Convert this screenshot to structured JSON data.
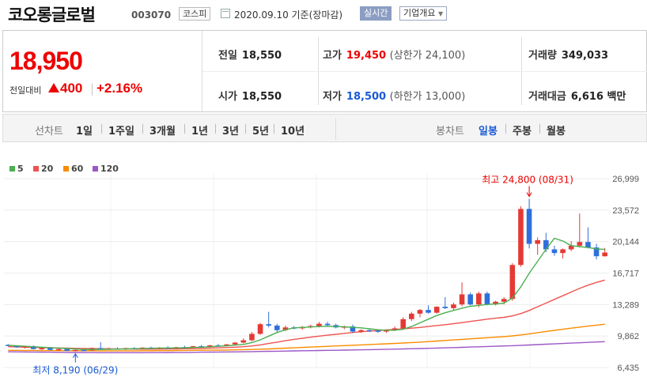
{
  "header": {
    "name": "코오롱글로벌",
    "code": "003070",
    "market": "코스피",
    "date": "2020.09.10 기준(장마감)",
    "realtime": "실시간",
    "overview": "기업개요",
    "overview_caret": "▼"
  },
  "quote": {
    "price": "18,950",
    "prev_label": "전일대비",
    "change": "400",
    "pct": "+2.16%",
    "sep": "|",
    "prev_close_label": "전일",
    "prev_close": "18,550",
    "open_label": "시가",
    "open": "18,550",
    "high_label": "고가",
    "high": "19,450",
    "upper_limit": "(상한가 24,100)",
    "low_label": "저가",
    "low": "18,500",
    "lower_limit": "(하한가 13,000)",
    "volume_label": "거래량",
    "volume": "349,033",
    "amount_label": "거래대금",
    "amount": "6,616 백만"
  },
  "period_tabs": {
    "label": "선차트",
    "items": [
      "1일",
      "1주일",
      "3개월",
      "1년",
      "3년",
      "5년",
      "10년"
    ]
  },
  "candle_tabs": {
    "label": "봉차트",
    "items": [
      "일봉",
      "주봉",
      "월봉"
    ],
    "active": "일봉"
  },
  "colors": {
    "up": "#e53935",
    "down": "#2f6fdc",
    "ma5": "#4caf50",
    "ma20": "#ef5350",
    "ma60": "#fb8c00",
    "ma120": "#9c57c8"
  },
  "chart_data": {
    "type": "candlestick",
    "legend": [
      {
        "name": "5",
        "color": "#4caf50"
      },
      {
        "name": "20",
        "color": "#ef5350"
      },
      {
        "name": "60",
        "color": "#fb8c00"
      },
      {
        "name": "120",
        "color": "#9c57c8"
      }
    ],
    "y_ticks": [
      "26,999",
      "23,572",
      "20,144",
      "16,717",
      "13,289",
      "9,862",
      "6,435"
    ],
    "y_tick_values": [
      26999,
      23572,
      20144,
      16717,
      13289,
      9862,
      6435
    ],
    "ylim": [
      6435,
      26999
    ],
    "max_label": "최고 24,800 (08/31)",
    "min_label": "최저 8,190 (06/29)",
    "candles": [
      [
        8900,
        9000,
        8750,
        8800
      ],
      [
        8800,
        8850,
        8600,
        8650
      ],
      [
        8650,
        8800,
        8500,
        8750
      ],
      [
        8750,
        8850,
        8400,
        8450
      ],
      [
        8450,
        8600,
        8350,
        8550
      ],
      [
        8550,
        8650,
        8300,
        8350
      ],
      [
        8350,
        8500,
        8250,
        8450
      ],
      [
        8450,
        8500,
        8200,
        8250
      ],
      [
        8250,
        8400,
        8190,
        8350
      ],
      [
        8350,
        8450,
        8250,
        8300
      ],
      [
        8300,
        8600,
        8250,
        8550
      ],
      [
        8550,
        9200,
        8400,
        8450
      ],
      [
        8450,
        8600,
        8350,
        8500
      ],
      [
        8500,
        8650,
        8400,
        8450
      ],
      [
        8450,
        8600,
        8350,
        8550
      ],
      [
        8550,
        8650,
        8450,
        8500
      ],
      [
        8500,
        8650,
        8400,
        8600
      ],
      [
        8600,
        8700,
        8450,
        8500
      ],
      [
        8500,
        8650,
        8400,
        8600
      ],
      [
        8600,
        8750,
        8500,
        8550
      ],
      [
        8550,
        8700,
        8450,
        8650
      ],
      [
        8650,
        8800,
        8550,
        8600
      ],
      [
        8600,
        8800,
        8550,
        8750
      ],
      [
        8750,
        8900,
        8600,
        8700
      ],
      [
        8700,
        8900,
        8600,
        8850
      ],
      [
        8850,
        9000,
        8700,
        8800
      ],
      [
        8800,
        9000,
        8750,
        8950
      ],
      [
        8950,
        9200,
        8850,
        9150
      ],
      [
        9150,
        9600,
        9050,
        9400
      ],
      [
        9400,
        10300,
        9300,
        10100
      ],
      [
        10100,
        11300,
        10000,
        11150
      ],
      [
        11150,
        12500,
        10800,
        11000
      ],
      [
        11000,
        11200,
        10300,
        10500
      ],
      [
        10500,
        11000,
        10400,
        10800
      ],
      [
        10800,
        10950,
        10600,
        10700
      ],
      [
        10700,
        10950,
        10550,
        10850
      ],
      [
        10850,
        11100,
        10700,
        10950
      ],
      [
        10950,
        11400,
        10800,
        11200
      ],
      [
        11200,
        11400,
        10950,
        11050
      ],
      [
        11050,
        11200,
        10700,
        10800
      ],
      [
        10800,
        11000,
        10600,
        10900
      ],
      [
        10900,
        11100,
        10200,
        10350
      ],
      [
        10350,
        10600,
        10200,
        10500
      ],
      [
        10500,
        10600,
        10300,
        10450
      ],
      [
        10450,
        10600,
        10200,
        10350
      ],
      [
        10350,
        10600,
        10200,
        10500
      ],
      [
        10500,
        10900,
        10400,
        10700
      ],
      [
        10700,
        11900,
        10600,
        11700
      ],
      [
        11700,
        12500,
        11500,
        12300
      ],
      [
        12300,
        12800,
        11900,
        12700
      ],
      [
        12700,
        13200,
        12300,
        12400
      ],
      [
        12400,
        13100,
        12300,
        13050
      ],
      [
        13050,
        14100,
        12800,
        12900
      ],
      [
        12900,
        13500,
        12700,
        13300
      ],
      [
        13300,
        15700,
        13100,
        14400
      ],
      [
        14400,
        14600,
        13200,
        13300
      ],
      [
        13300,
        14700,
        13000,
        14500
      ],
      [
        14500,
        14700,
        13200,
        13300
      ],
      [
        13300,
        13700,
        13200,
        13600
      ],
      [
        13600,
        14100,
        13300,
        13900
      ],
      [
        13900,
        17800,
        13700,
        17600
      ],
      [
        17600,
        24000,
        17400,
        23700
      ],
      [
        23700,
        24800,
        19400,
        19900
      ],
      [
        19900,
        20600,
        18700,
        20300
      ],
      [
        20300,
        21100,
        19000,
        19300
      ],
      [
        19300,
        19700,
        18600,
        18900
      ],
      [
        18900,
        19400,
        18300,
        19300
      ],
      [
        19300,
        20200,
        19100,
        19700
      ],
      [
        19700,
        23200,
        19500,
        20100
      ],
      [
        20100,
        21700,
        19400,
        19500
      ],
      [
        19500,
        19900,
        18200,
        18550
      ],
      [
        18550,
        19450,
        18500,
        18950
      ]
    ],
    "ma5": [
      8850,
      8800,
      8750,
      8700,
      8650,
      8600,
      8550,
      8500,
      8450,
      8400,
      8400,
      8400,
      8420,
      8440,
      8460,
      8490,
      8510,
      8530,
      8550,
      8560,
      8570,
      8590,
      8620,
      8650,
      8700,
      8750,
      8800,
      8870,
      8950,
      9150,
      9450,
      9850,
      10250,
      10550,
      10750,
      10800,
      10850,
      10900,
      10930,
      10900,
      10870,
      10800,
      10750,
      10650,
      10550,
      10500,
      10500,
      10600,
      10900,
      11300,
      11700,
      12100,
      12400,
      12650,
      12900,
      13100,
      13200,
      13300,
      13350,
      13450,
      14000,
      15200,
      16700,
      18000,
      19300,
      20500,
      20200,
      19700,
      19600,
      19500,
      19350,
      19300
    ],
    "ma20": [
      8700,
      8680,
      8650,
      8620,
      8600,
      8580,
      8560,
      8540,
      8520,
      8500,
      8490,
      8480,
      8470,
      8460,
      8450,
      8440,
      8430,
      8430,
      8440,
      8450,
      8460,
      8480,
      8500,
      8520,
      8550,
      8580,
      8610,
      8650,
      8700,
      8780,
      8900,
      9050,
      9200,
      9350,
      9500,
      9620,
      9740,
      9850,
      9950,
      10050,
      10150,
      10250,
      10330,
      10400,
      10460,
      10520,
      10580,
      10650,
      10720,
      10800,
      10900,
      11000,
      11100,
      11200,
      11320,
      11450,
      11570,
      11700,
      11800,
      11900,
      12050,
      12300,
      12650,
      13050,
      13450,
      13850,
      14250,
      14650,
      15050,
      15400,
      15700,
      15950
    ],
    "ma60": [
      8300,
      8300,
      8290,
      8290,
      8280,
      8280,
      8270,
      8270,
      8260,
      8260,
      8255,
      8250,
      8250,
      8250,
      8250,
      8250,
      8255,
      8260,
      8265,
      8270,
      8280,
      8290,
      8300,
      8310,
      8320,
      8330,
      8340,
      8360,
      8380,
      8400,
      8430,
      8460,
      8500,
      8540,
      8580,
      8620,
      8660,
      8700,
      8740,
      8780,
      8820,
      8860,
      8900,
      8940,
      8980,
      9020,
      9060,
      9100,
      9150,
      9200,
      9260,
      9320,
      9380,
      9440,
      9500,
      9560,
      9620,
      9680,
      9740,
      9800,
      9880,
      9980,
      10100,
      10230,
      10360,
      10480,
      10600,
      10720,
      10830,
      10940,
      11050,
      11150
    ],
    "ma120": [
      8150,
      8140,
      8130,
      8120,
      8110,
      8100,
      8090,
      8080,
      8070,
      8065,
      8060,
      8055,
      8050,
      8050,
      8050,
      8050,
      8055,
      8060,
      8065,
      8070,
      8075,
      8080,
      8090,
      8100,
      8110,
      8120,
      8130,
      8140,
      8150,
      8165,
      8180,
      8195,
      8210,
      8225,
      8240,
      8255,
      8270,
      8285,
      8300,
      8315,
      8330,
      8345,
      8360,
      8380,
      8400,
      8420,
      8440,
      8460,
      8480,
      8500,
      8525,
      8550,
      8575,
      8600,
      8630,
      8660,
      8690,
      8720,
      8750,
      8780,
      8810,
      8850,
      8890,
      8930,
      8970,
      9010,
      9050,
      9090,
      9130,
      9170,
      9210,
      9250
    ]
  }
}
